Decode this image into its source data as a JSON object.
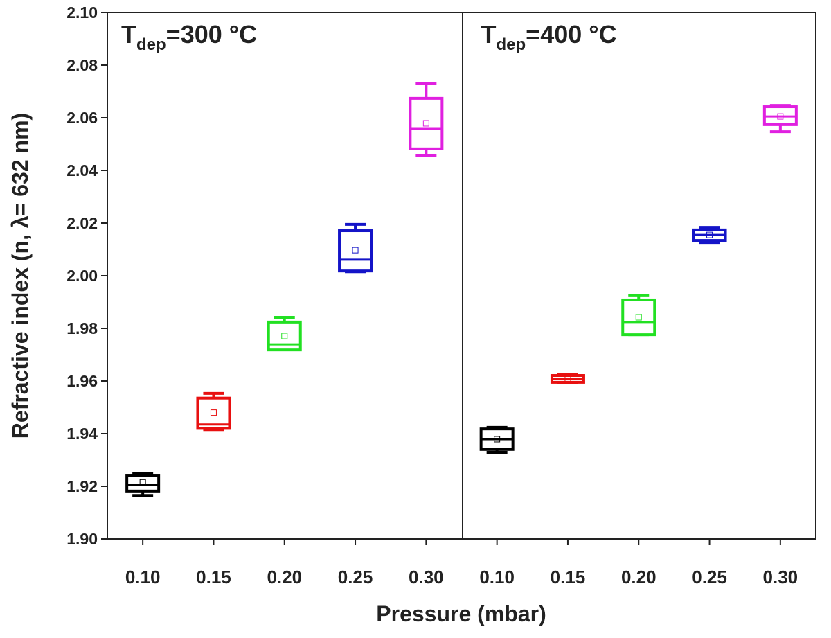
{
  "chart_data": {
    "type": "box",
    "ylabel": "Refractive index (n, λ= 632 nm)",
    "xlabel": "Pressure (mbar)",
    "ylim": [
      1.9,
      2.1
    ],
    "yticks": [
      {
        "value": 1.9,
        "label": "1.90"
      },
      1.92,
      1.94,
      1.96,
      1.98,
      {
        "value": 2.0,
        "label": "2.00"
      },
      2.02,
      2.04,
      2.06,
      2.08,
      {
        "value": 2.1,
        "label": "2.10"
      }
    ],
    "panels": [
      {
        "title": {
          "main": "T",
          "sub": "dep",
          "rest": "=300 °C"
        },
        "categories": [
          "0.10",
          "0.15",
          "0.20",
          "0.25",
          "0.30"
        ],
        "colors": [
          "#000000",
          "#e81010",
          "#22e022",
          "#1414c8",
          "#e020e0"
        ],
        "min": [
          1.9165,
          1.9415,
          1.972,
          2.0015,
          2.0458
        ],
        "q1": [
          1.9182,
          1.942,
          1.9718,
          2.0018,
          2.0482
        ],
        "median": [
          1.9205,
          1.9435,
          1.9739,
          2.0061,
          2.0558
        ],
        "q3": [
          1.9242,
          1.9535,
          1.9824,
          2.0171,
          2.0674
        ],
        "max": [
          1.925,
          1.9553,
          1.9842,
          2.0195,
          2.0729
        ],
        "mean": [
          1.9215,
          1.948,
          1.9771,
          2.0097,
          2.0579
        ]
      },
      {
        "title": {
          "main": "T",
          "sub": "dep",
          "rest": "=400 °C"
        },
        "categories": [
          "0.10",
          "0.15",
          "0.20",
          "0.25",
          "0.30"
        ],
        "colors": [
          "#000000",
          "#e81010",
          "#22e022",
          "#1414c8",
          "#e020e0"
        ],
        "min": [
          1.9329,
          1.9592,
          1.9776,
          2.0126,
          2.0547
        ],
        "q1": [
          1.934,
          1.9595,
          1.9776,
          2.0134,
          2.0574
        ],
        "median": [
          1.9379,
          1.9608,
          1.9824,
          2.0155,
          2.0605
        ],
        "q3": [
          1.9418,
          1.9621,
          1.9908,
          2.0174,
          2.0642
        ],
        "max": [
          1.9424,
          1.9626,
          1.9924,
          2.0184,
          2.0647
        ],
        "mean": [
          1.9379,
          1.9608,
          1.9842,
          2.0155,
          2.0605
        ]
      }
    ]
  }
}
